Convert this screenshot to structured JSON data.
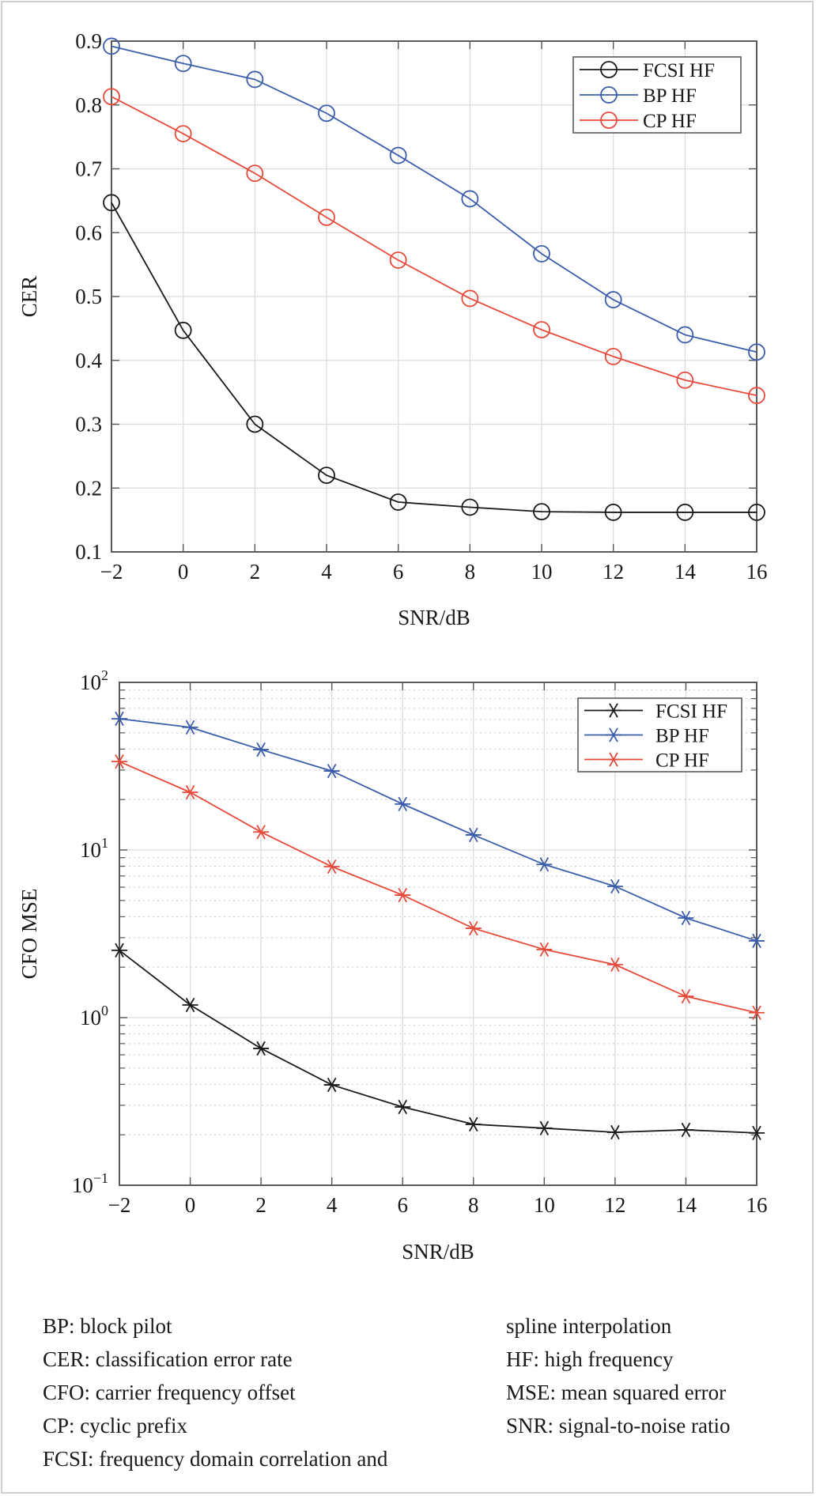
{
  "chart_data": [
    {
      "type": "line",
      "id": "cer",
      "title": "",
      "xlabel": "SNR/dB",
      "ylabel": "CER",
      "yscale": "linear",
      "xlim": [
        -2,
        16
      ],
      "ylim": [
        0.1,
        0.9
      ],
      "xticks": [
        -2,
        0,
        2,
        4,
        6,
        8,
        10,
        12,
        14,
        16
      ],
      "xtick_labels": [
        "−2",
        "0",
        "2",
        "4",
        "6",
        "8",
        "10",
        "12",
        "14",
        "16"
      ],
      "yticks": [
        0.1,
        0.2,
        0.3,
        0.4,
        0.5,
        0.6,
        0.7,
        0.8,
        0.9
      ],
      "ytick_labels": [
        "0.1",
        "0.2",
        "0.3",
        "0.4",
        "0.5",
        "0.6",
        "0.7",
        "0.8",
        "0.9"
      ],
      "grid": true,
      "legend_position": "top-right",
      "marker": "circle",
      "x": [
        -2,
        0,
        2,
        4,
        6,
        8,
        10,
        12,
        14,
        16
      ],
      "series": [
        {
          "name": "FCSI HF",
          "color": "#1a1a1a",
          "values": [
            0.647,
            0.447,
            0.3,
            0.22,
            0.178,
            0.17,
            0.163,
            0.162,
            0.162,
            0.162
          ]
        },
        {
          "name": "BP HF",
          "color": "#3b5dab",
          "values": [
            0.892,
            0.865,
            0.84,
            0.787,
            0.721,
            0.653,
            0.567,
            0.495,
            0.44,
            0.413
          ]
        },
        {
          "name": "CP HF",
          "color": "#e64a3a",
          "values": [
            0.813,
            0.755,
            0.693,
            0.624,
            0.557,
            0.497,
            0.448,
            0.406,
            0.369,
            0.345
          ]
        }
      ]
    },
    {
      "type": "line",
      "id": "cfo-mse",
      "title": "",
      "xlabel": "SNR/dB",
      "ylabel": "CFO MSE",
      "yscale": "log",
      "xlim": [
        -2,
        16
      ],
      "ylim": [
        0.1,
        100
      ],
      "xticks": [
        -2,
        0,
        2,
        4,
        6,
        8,
        10,
        12,
        14,
        16
      ],
      "xtick_labels": [
        "−2",
        "0",
        "2",
        "4",
        "6",
        "8",
        "10",
        "12",
        "14",
        "16"
      ],
      "yticks": [
        0.1,
        1,
        10,
        100
      ],
      "ytick_labels": [
        {
          "base": "10",
          "exp": "−1"
        },
        {
          "base": "10",
          "exp": "0"
        },
        {
          "base": "10",
          "exp": "1"
        },
        {
          "base": "10",
          "exp": "2"
        }
      ],
      "grid": true,
      "minor_grid": true,
      "legend_position": "top-right",
      "marker": "asterisk",
      "x": [
        -2,
        0,
        2,
        4,
        6,
        8,
        10,
        12,
        14,
        16
      ],
      "series": [
        {
          "name": "FCSI HF",
          "color": "#1a1a1a",
          "values": [
            2.52,
            1.19,
            0.655,
            0.397,
            0.293,
            0.231,
            0.219,
            0.207,
            0.214,
            0.205
          ]
        },
        {
          "name": "BP HF",
          "color": "#3b5dab",
          "values": [
            60.7,
            53.9,
            39.7,
            29.6,
            18.8,
            12.3,
            8.2,
            6.07,
            3.93,
            2.87
          ]
        },
        {
          "name": "CP HF",
          "color": "#e64a3a",
          "values": [
            33.7,
            22.1,
            12.8,
            7.96,
            5.38,
            3.41,
            2.55,
            2.07,
            1.34,
            1.07
          ]
        }
      ]
    }
  ],
  "notes": {
    "left": [
      "BP: block pilot",
      "CER: classification error rate",
      "CFO: carrier frequency offset",
      "CP: cyclic prefix",
      "FCSI: frequency domain correlation and"
    ],
    "right": [
      "spline interpolation",
      "HF: high frequency",
      "MSE: mean squared error",
      "SNR: signal-to-noise ratio"
    ]
  }
}
